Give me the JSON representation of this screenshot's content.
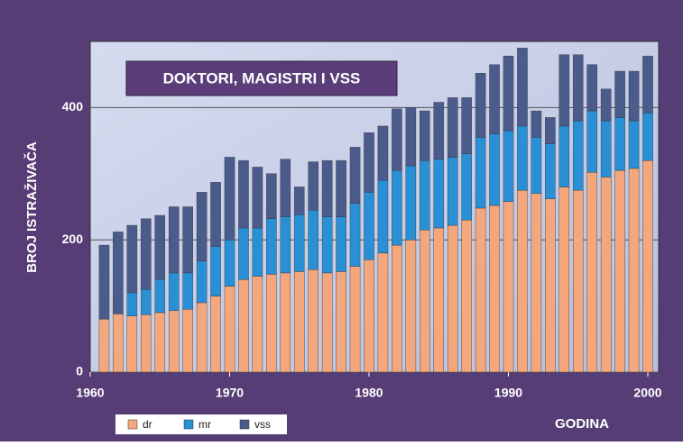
{
  "chart_data": {
    "type": "stacked-bar",
    "title": "DOKTORI, MAGISTRI I VSS",
    "ylabel": "BROJ ISTRAŽIVAČA",
    "xlabel": "GODINA",
    "x": [
      1961,
      1962,
      1963,
      1964,
      1965,
      1966,
      1967,
      1968,
      1969,
      1970,
      1971,
      1972,
      1973,
      1974,
      1975,
      1976,
      1977,
      1978,
      1979,
      1980,
      1981,
      1982,
      1983,
      1984,
      1985,
      1986,
      1987,
      1988,
      1989,
      1990,
      1991,
      1992,
      1993,
      1994,
      1995,
      1996,
      1997,
      1998,
      1999,
      2000
    ],
    "series": [
      {
        "name": "dr",
        "color": "#f4a77c",
        "values": [
          80,
          88,
          85,
          87,
          90,
          93,
          95,
          105,
          115,
          130,
          140,
          145,
          148,
          150,
          152,
          155,
          150,
          152,
          160,
          170,
          180,
          192,
          200,
          215,
          218,
          222,
          230,
          248,
          252,
          258,
          275,
          270,
          262,
          280,
          275,
          302,
          295,
          305,
          308,
          320
        ]
      },
      {
        "name": "mr",
        "color": "#2a90d6",
        "values": [
          0,
          0,
          35,
          38,
          50,
          57,
          55,
          63,
          75,
          70,
          78,
          73,
          84,
          85,
          86,
          90,
          85,
          83,
          95,
          102,
          110,
          113,
          112,
          105,
          104,
          103,
          100,
          107,
          108,
          107,
          97,
          85,
          83,
          92,
          105,
          93,
          85,
          80,
          72,
          72
        ]
      },
      {
        "name": "vss",
        "color": "#4b5b8c",
        "values": [
          112,
          124,
          102,
          107,
          97,
          100,
          100,
          104,
          97,
          125,
          102,
          92,
          68,
          87,
          42,
          73,
          85,
          85,
          85,
          90,
          82,
          93,
          88,
          75,
          86,
          90,
          85,
          97,
          105,
          113,
          118,
          40,
          40,
          108,
          100,
          70,
          48,
          70,
          75,
          86
        ]
      }
    ],
    "xlim": [
      1960,
      2000
    ],
    "xticks": [
      1960,
      1970,
      1980,
      1990,
      2000
    ],
    "ylim": [
      0,
      500
    ],
    "yticks": [
      0,
      200,
      400
    ],
    "grid": true
  }
}
